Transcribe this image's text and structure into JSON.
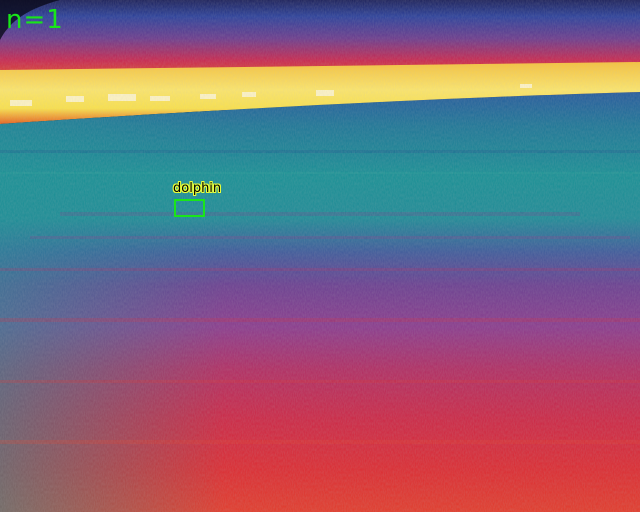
{
  "overlay": {
    "count_text": "n=1",
    "accent_color": "#19e619"
  },
  "detections": [
    {
      "label": "dolphin"
    }
  ],
  "palette": {
    "deep_blue": "#2a3f9a",
    "teal": "#168f94",
    "purple": "#8a3a8c",
    "magenta_red": "#c8264e",
    "red": "#dc2a30",
    "orange": "#f07a1e",
    "yellow": "#fbe24a",
    "white_hot": "#fff6d0"
  }
}
